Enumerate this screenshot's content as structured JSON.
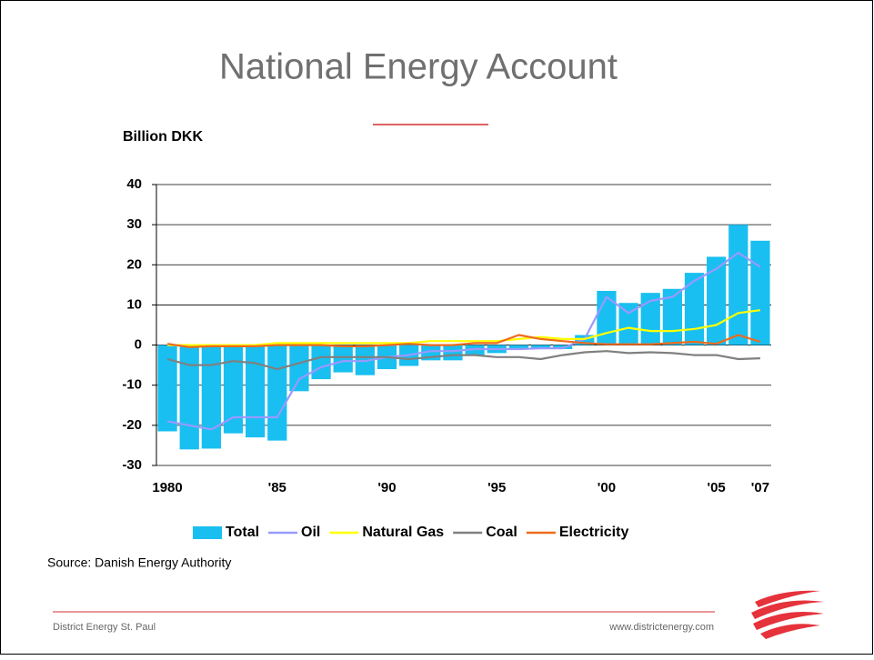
{
  "slide": {
    "title": "National Energy Account",
    "source": "Source: Danish Energy Authority",
    "footer_left": "District Energy St. Paul",
    "footer_right": "www.districtenergy.com"
  },
  "chart_data": {
    "type": "bar",
    "y_label": "Billion DKK",
    "categories": [
      "1980",
      null,
      null,
      null,
      null,
      "'85",
      null,
      null,
      null,
      null,
      "'90",
      null,
      null,
      null,
      null,
      "'95",
      null,
      null,
      null,
      null,
      "'00",
      null,
      null,
      null,
      null,
      "'05",
      null,
      "'07"
    ],
    "series": [
      {
        "name": "Total",
        "type": "bar",
        "color": "#19bff0",
        "values": [
          -21.5,
          -26,
          -25.8,
          -22,
          -23,
          -23.8,
          -11.5,
          -8.5,
          -6.8,
          -7.5,
          -6,
          -5.2,
          -3.8,
          -3.8,
          -2.5,
          -2,
          -1,
          -1,
          -1,
          2.5,
          13.5,
          10.5,
          13,
          14,
          18,
          22,
          30,
          26
        ]
      },
      {
        "name": "Oil",
        "type": "line",
        "color": "#9999ff",
        "values": [
          -19,
          -20,
          -21,
          -18,
          -18,
          -18,
          -8.5,
          -5.5,
          -4,
          -4,
          -3,
          -2.5,
          -1.5,
          -1.5,
          -1,
          -1,
          -1,
          -0.8,
          -0.8,
          1.5,
          12,
          8,
          11,
          12,
          16,
          19,
          23,
          19.5
        ]
      },
      {
        "name": "Natural Gas",
        "type": "line",
        "color": "#ffff00",
        "values": [
          0,
          0,
          0,
          0,
          0,
          0.5,
          0.5,
          0.5,
          0.5,
          0.5,
          0.5,
          0.5,
          1,
          1,
          1,
          1,
          1.5,
          2,
          1.5,
          1.5,
          3,
          4.3,
          3.5,
          3.5,
          4,
          5,
          8,
          8.7
        ]
      },
      {
        "name": "Coal",
        "type": "line",
        "color": "#808080",
        "values": [
          -3.5,
          -5,
          -5,
          -4,
          -4.5,
          -6,
          -4.5,
          -3,
          -3,
          -3,
          -3,
          -3.5,
          -3,
          -2.5,
          -2.5,
          -3,
          -3,
          -3.5,
          -2.5,
          -1.8,
          -1.5,
          -2,
          -1.8,
          -2,
          -2.5,
          -2.5,
          -3.5,
          -3.3
        ]
      },
      {
        "name": "Electricity",
        "type": "line",
        "color": "#ee6a1c",
        "values": [
          0.3,
          -0.5,
          -0.3,
          -0.3,
          -0.3,
          0,
          0,
          0,
          -0.3,
          -0.3,
          0,
          0.3,
          0,
          0,
          0.5,
          0.5,
          2.5,
          1.5,
          1,
          0.5,
          0.2,
          0.2,
          0.2,
          0.5,
          0.8,
          0.3,
          2.5,
          0.8
        ]
      }
    ],
    "ylim": [
      -30,
      40
    ],
    "yticks": [
      -30,
      -20,
      -10,
      0,
      10,
      20,
      30,
      40
    ],
    "grid": true,
    "legend": "bottom"
  }
}
